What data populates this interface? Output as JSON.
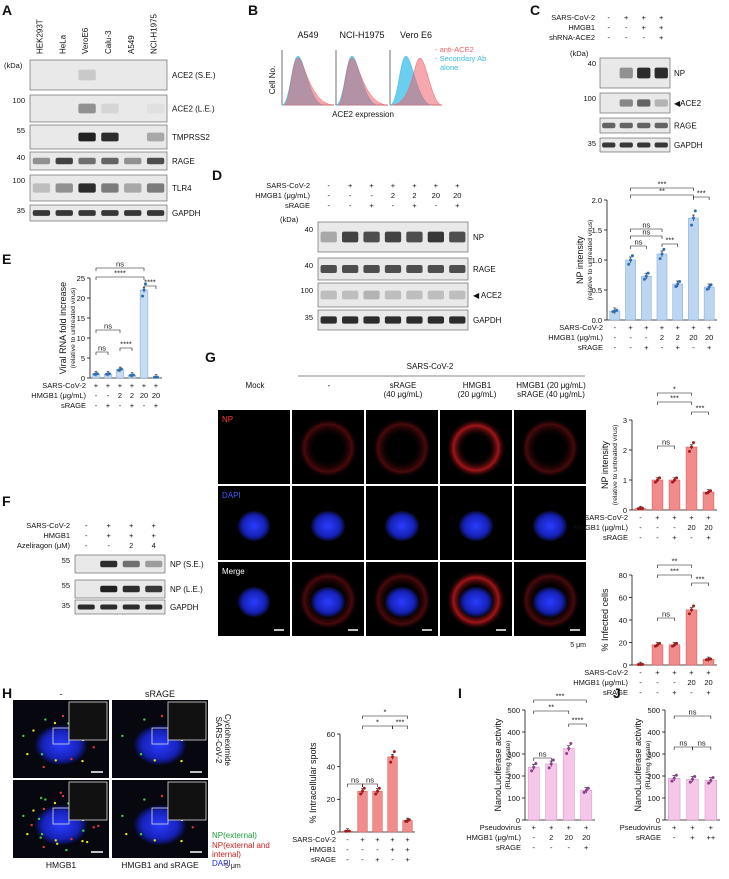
{
  "panels": {
    "A": {
      "letter": "A",
      "kda": "(kDa)",
      "cells": [
        "HEK293T",
        "HeLa",
        "VeroE6",
        "Calu-3",
        "A549",
        "NCI-H1975"
      ],
      "blots": [
        {
          "marker": "",
          "label": "ACE2 (S.E.)"
        },
        {
          "marker": "100",
          "label": "ACE2 (L.E.)"
        },
        {
          "marker": "55",
          "label": "TMPRSS2"
        },
        {
          "marker": "40",
          "label": "RAGE"
        },
        {
          "marker": "100",
          "label": "TLR4"
        },
        {
          "marker": "35",
          "label": "GAPDH"
        }
      ]
    },
    "B": {
      "letter": "B",
      "samples": [
        "A549",
        "NCI-H1975",
        "Vero E6"
      ],
      "ylabel": "Cell No.",
      "xlabel": "ACE2 expression",
      "legend": [
        "- anti-ACE2",
        "- Secondary Ab",
        "alone"
      ],
      "colors": {
        "anti": "#f0606b",
        "secondary": "#3bbde8"
      }
    },
    "C": {
      "letter": "C",
      "kda": "(kDa)",
      "conditions": [
        {
          "label": "SARS-CoV-2",
          "vals": [
            "-",
            "+",
            "+",
            "+"
          ]
        },
        {
          "label": "HMGB1",
          "vals": [
            "-",
            "-",
            "+",
            "+"
          ]
        },
        {
          "label": "shRNA-ACE2",
          "vals": [
            "-",
            "-",
            "-",
            "+"
          ]
        }
      ],
      "blots": [
        {
          "marker": "40",
          "label": "NP"
        },
        {
          "marker": "100",
          "label": "◀ACE2"
        },
        {
          "marker": "",
          "label": "RAGE"
        },
        {
          "marker": "35",
          "label": "GAPDH"
        }
      ]
    },
    "D": {
      "letter": "D",
      "kda": "(kDa)",
      "conditions": [
        {
          "label": "SARS-CoV-2",
          "vals": [
            "-",
            "+",
            "+",
            "+",
            "+",
            "+",
            "+"
          ]
        },
        {
          "label": "HMGB1 (μg/mL)",
          "vals": [
            "-",
            "-",
            "-",
            "2",
            "2",
            "20",
            "20"
          ]
        },
        {
          "label": "sRAGE",
          "vals": [
            "-",
            "-",
            "+",
            "-",
            "+",
            "-",
            "+"
          ]
        }
      ],
      "blots": [
        {
          "marker": "40",
          "label": "NP"
        },
        {
          "marker": "40",
          "label": "RAGE"
        },
        {
          "marker": "100",
          "label": "◀ ACE2"
        },
        {
          "marker": "35",
          "label": "GAPDH"
        }
      ],
      "chart_data": {
        "type": "bar",
        "ylabel": "NP intensity",
        "ysub": "(relative to untreated virus)",
        "ylim": [
          0,
          2.0
        ],
        "yticks": [
          "0.0",
          "0.5",
          "1.0",
          "1.5",
          "2.0"
        ],
        "values": [
          0.15,
          1.0,
          0.73,
          1.1,
          0.6,
          1.7,
          0.55
        ],
        "conditions": [
          {
            "label": "SARS-CoV-2",
            "vals": [
              "-",
              "+",
              "+",
              "+",
              "+",
              "+",
              "+"
            ]
          },
          {
            "label": "HMGB1 (μg/mL)",
            "vals": [
              "-",
              "-",
              "-",
              "2",
              "2",
              "20",
              "20"
            ]
          },
          {
            "label": "sRAGE",
            "vals": [
              "-",
              "-",
              "+",
              "-",
              "+",
              "-",
              "+"
            ]
          }
        ],
        "sig": [
          "***",
          "**",
          "ns",
          "ns",
          "***",
          "ns",
          "***"
        ]
      }
    },
    "E": {
      "letter": "E",
      "chart_data": {
        "type": "bar",
        "ylabel": "Viral RNA fold increase",
        "ysub": "(relative to untreated virus)",
        "ylim": [
          0,
          25
        ],
        "yticks": [
          "0",
          "5",
          "10",
          "15",
          "20",
          "25"
        ],
        "values": [
          1.0,
          1.0,
          2.1,
          0.7,
          22,
          0.2
        ],
        "conditions": [
          {
            "label": "SARS-CoV-2",
            "vals": [
              "+",
              "+",
              "+",
              "+",
              "+",
              "+"
            ]
          },
          {
            "label": "HMGB1 (μg/mL)",
            "vals": [
              "-",
              "-",
              "2",
              "2",
              "20",
              "20"
            ]
          },
          {
            "label": "sRAGE",
            "vals": [
              "-",
              "+",
              "-",
              "+",
              "-",
              "+"
            ]
          }
        ],
        "sig": [
          "ns",
          "****",
          "ns",
          "ns",
          "****",
          "****"
        ]
      }
    },
    "F": {
      "letter": "F",
      "conditions": [
        {
          "label": "SARS-CoV-2",
          "vals": [
            "-",
            "+",
            "+",
            "+"
          ]
        },
        {
          "label": "HMGB1",
          "vals": [
            "-",
            "+",
            "+",
            "+"
          ]
        },
        {
          "label": "Azeliragon (μM)",
          "vals": [
            "-",
            "-",
            "2",
            "4"
          ]
        }
      ],
      "blots": [
        {
          "marker": "55",
          "label": "NP (S.E.)"
        },
        {
          "marker": "55",
          "label": "NP (L.E.)"
        },
        {
          "marker": "35",
          "label": "GAPDH"
        }
      ]
    },
    "G": {
      "letter": "G",
      "header": "SARS-CoV-2",
      "columns": [
        "Mock",
        "-",
        "sRAGE\n(40 μg/mL)",
        "HMGB1\n(20 μg/mL)",
        "HMGB1 (20 μg/mL)\nsRAGE (40 μg/mL)"
      ],
      "rows": [
        "NP",
        "DAPI",
        "Merge"
      ],
      "scale": "5 μm",
      "chart1": {
        "type": "bar",
        "ylabel": "NP intensity",
        "ysub": "(relative to untreated virus)",
        "ylim": [
          0,
          3
        ],
        "yticks": [
          "0",
          "1",
          "2",
          "3"
        ],
        "values": [
          0.05,
          1.0,
          1.0,
          2.1,
          0.6
        ],
        "sig": [
          "*",
          "***",
          "ns",
          "***"
        ]
      },
      "chart2": {
        "type": "bar",
        "ylabel": "% Infected cells",
        "ylim": [
          0,
          80
        ],
        "yticks": [
          "0",
          "20",
          "40",
          "60",
          "80"
        ],
        "values": [
          0.5,
          18,
          18,
          49,
          5
        ],
        "sig": [
          "**",
          "***",
          "ns",
          "***"
        ]
      },
      "conditions": [
        {
          "label": "SARS-CoV-2",
          "vals": [
            "-",
            "+",
            "+",
            "+",
            "+"
          ]
        },
        {
          "label": "HMGB1 (μg/mL)",
          "vals": [
            "-",
            "-",
            "-",
            "20",
            "20"
          ]
        },
        {
          "label": "sRAGE",
          "vals": [
            "-",
            "-",
            "+",
            "-",
            "+"
          ]
        }
      ]
    },
    "H": {
      "letter": "H",
      "top_labels": [
        "-",
        "sRAGE"
      ],
      "bottom_labels": [
        "HMGB1",
        "HMGB1 and sRAGE"
      ],
      "side": "SARS-CoV-2\nCycloheximide",
      "legend": [
        "NP(external)",
        "NP(external and",
        "internal)",
        "DAPI"
      ],
      "scale": "5 μm",
      "chart_data": {
        "type": "bar",
        "ylabel": "% Intracellular spots",
        "ylim": [
          0,
          60
        ],
        "yticks": [
          "0",
          "20",
          "40",
          "60"
        ],
        "values": [
          0.5,
          25,
          25,
          46,
          7
        ],
        "conditions": [
          {
            "label": "SARS-CoV-2",
            "vals": [
              "-",
              "+",
              "+",
              "+",
              "+"
            ]
          },
          {
            "label": "HMGB1",
            "vals": [
              "-",
              "-",
              "-",
              "+",
              "+"
            ]
          },
          {
            "label": "sRAGE",
            "vals": [
              "-",
              "-",
              "+",
              "-",
              "+"
            ]
          }
        ],
        "sig": [
          "*",
          "*",
          "***",
          "ns",
          "ns"
        ]
      }
    },
    "I": {
      "letter": "I",
      "chart_data": {
        "type": "bar",
        "ylabel": "NanoLuciferase activity",
        "ysub": "(RLU/mg lysate)",
        "ylim": [
          0,
          500
        ],
        "yticks": [
          "0",
          "100",
          "200",
          "300",
          "400",
          "500"
        ],
        "values": [
          240,
          255,
          325,
          135
        ],
        "conditions": [
          {
            "label": "Pseudovirus",
            "vals": [
              "+",
              "+",
              "+",
              "+"
            ]
          },
          {
            "label": "HMGB1 (μg/mL)",
            "vals": [
              "-",
              "2",
              "20",
              "20"
            ]
          },
          {
            "label": "sRAGE",
            "vals": [
              "-",
              "-",
              "-",
              "+"
            ]
          }
        ],
        "sig": [
          "***",
          "**",
          "ns",
          "****"
        ]
      }
    },
    "J": {
      "letter": "J",
      "chart_data": {
        "type": "bar",
        "ylabel": "NanoLuciferase activity",
        "ysub": "(RLU/mg lysate)",
        "ylim": [
          0,
          500
        ],
        "yticks": [
          "0",
          "100",
          "200",
          "300",
          "400",
          "500"
        ],
        "values": [
          190,
          185,
          180
        ],
        "conditions": [
          {
            "label": "Pseudovirus",
            "vals": [
              "+",
              "+",
              "+"
            ]
          },
          {
            "label": "sRAGE",
            "vals": [
              "-",
              "+",
              "++"
            ]
          }
        ],
        "sig": [
          "ns",
          "ns",
          "ns"
        ]
      }
    }
  }
}
